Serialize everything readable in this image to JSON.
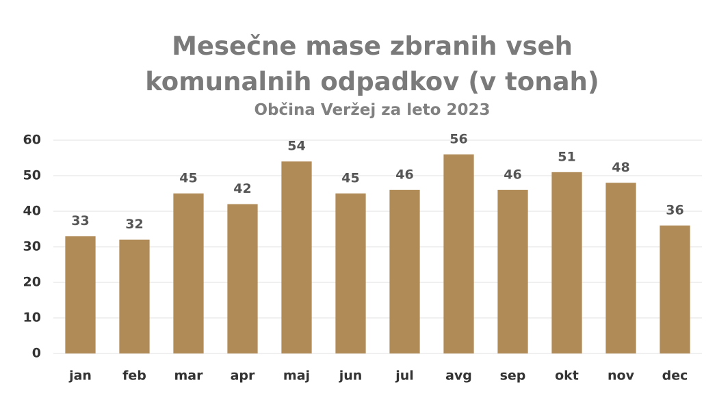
{
  "chart_data": {
    "type": "bar",
    "title": "Mesečne mase zbranih vseh komunalnih odpadkov (v tonah)",
    "subtitle": "Občina Veržej za leto 2023",
    "categories": [
      "jan",
      "feb",
      "mar",
      "apr",
      "maj",
      "jun",
      "jul",
      "avg",
      "sep",
      "okt",
      "nov",
      "dec"
    ],
    "values": [
      33,
      32,
      45,
      42,
      54,
      45,
      46,
      56,
      46,
      51,
      48,
      36
    ],
    "color": "#b08a57",
    "ylim": [
      0,
      60
    ],
    "yticks": [
      0,
      10,
      20,
      30,
      40,
      50,
      60
    ],
    "grid": true
  }
}
